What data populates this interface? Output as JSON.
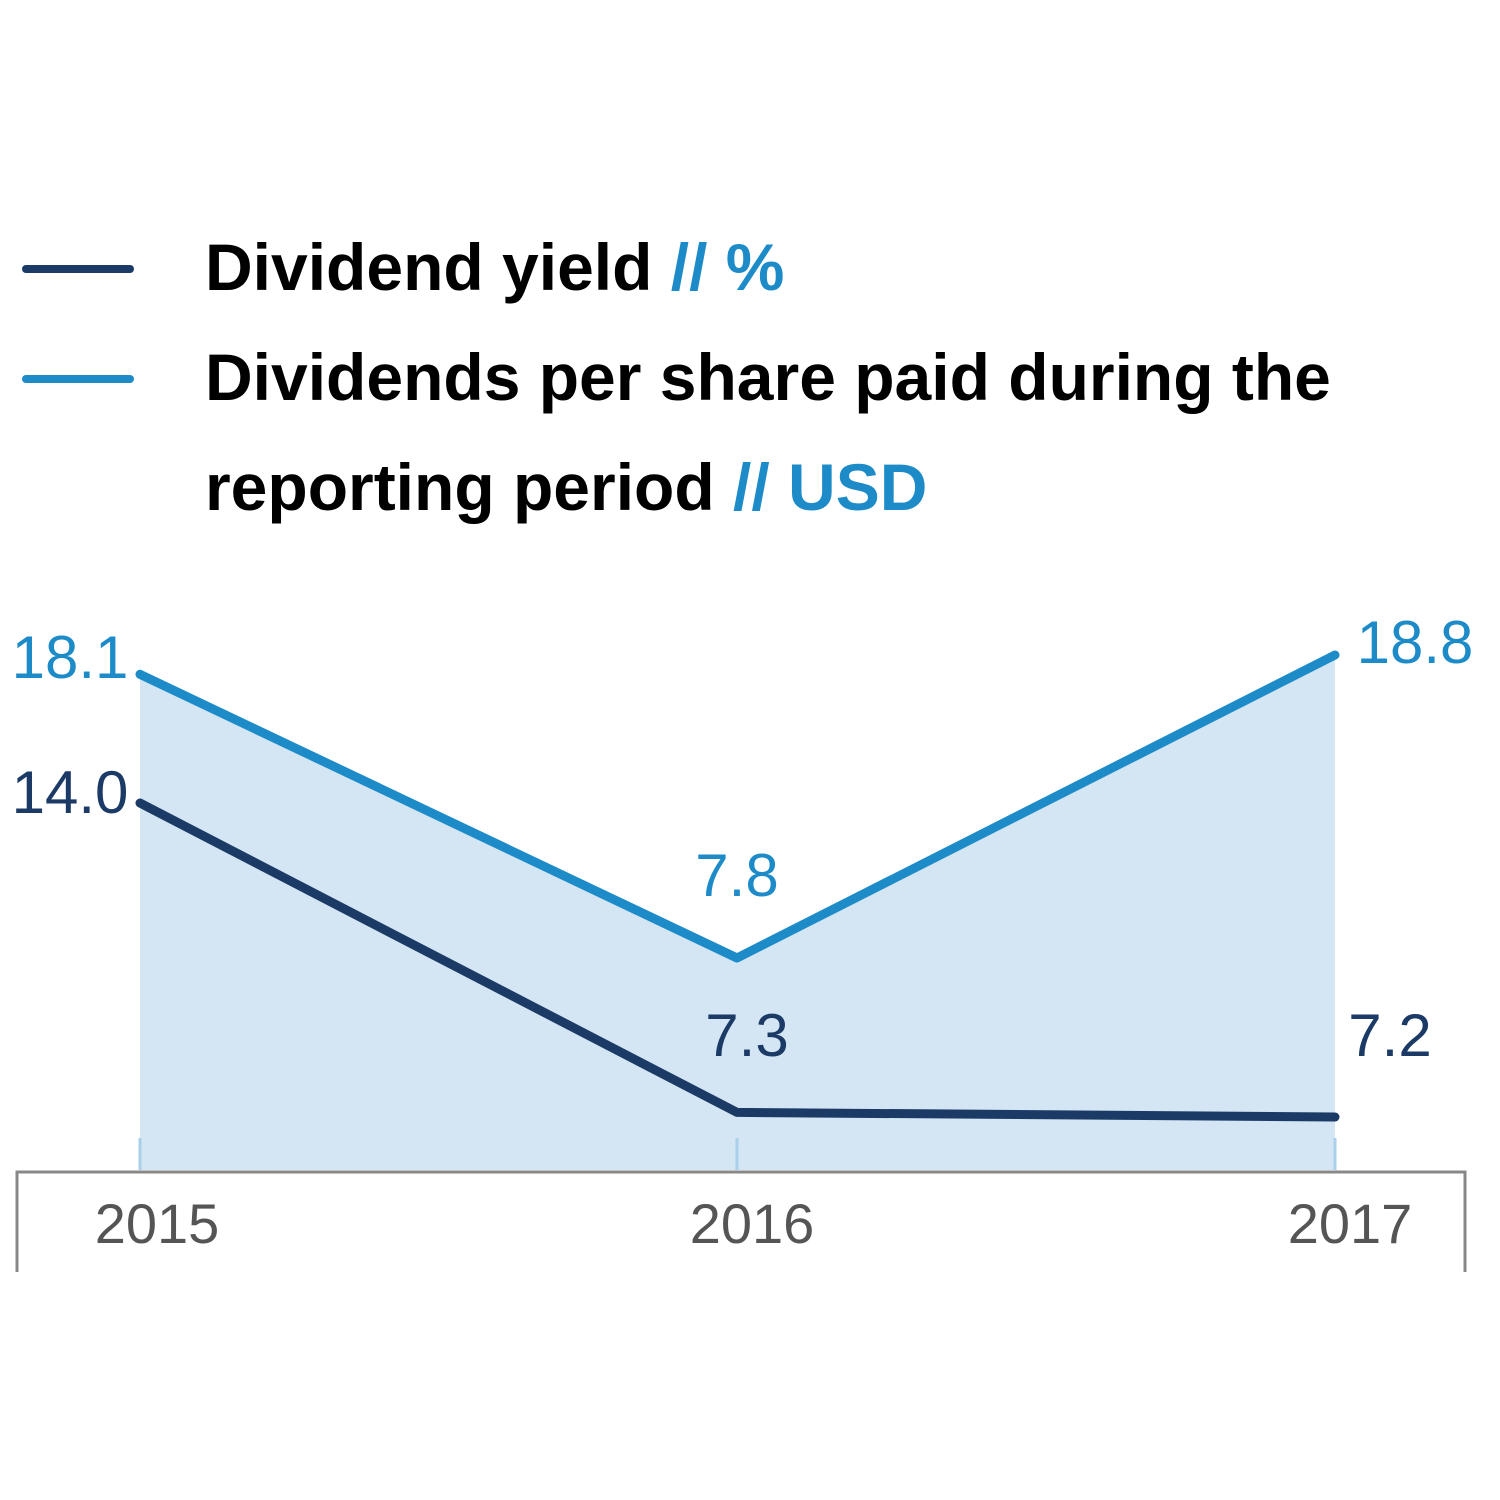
{
  "chart_data": {
    "type": "line",
    "categories": [
      "2015",
      "2016",
      "2017"
    ],
    "series": [
      {
        "name": "Dividend yield",
        "unit": "// %",
        "color": "#1b3a66",
        "values": [
          14.0,
          7.3,
          7.2
        ],
        "value_labels": [
          "14.0",
          "7.3",
          "7.2"
        ],
        "area": false
      },
      {
        "name": "Dividends per share paid during the reporting period",
        "unit": "// USD",
        "color": "#1e8bc9",
        "values": [
          18.1,
          7.8,
          18.8
        ],
        "value_labels": [
          "18.1",
          "7.8",
          "18.8"
        ],
        "area": true,
        "area_color": "#d4e6f4"
      }
    ]
  }
}
